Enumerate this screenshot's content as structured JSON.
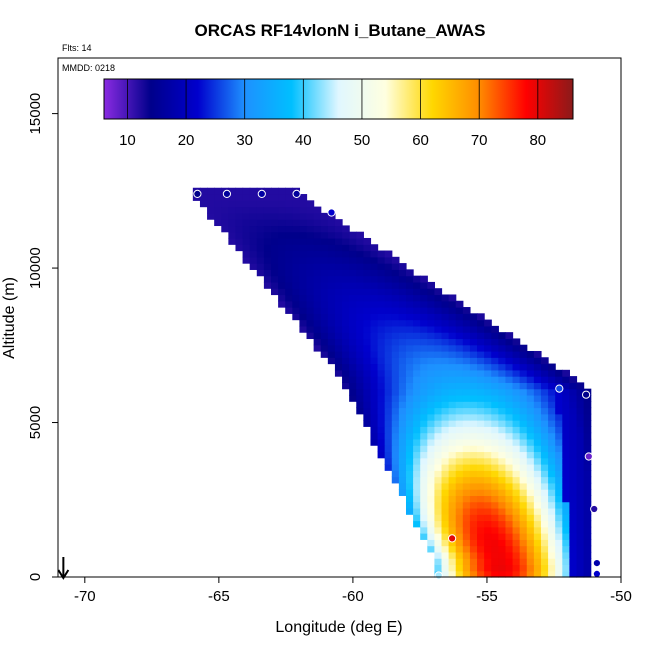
{
  "chart_data": {
    "type": "heatmap",
    "title": "ORCAS RF14vlonN i_Butane_AWAS",
    "notes": {
      "flights": "Flts: 14",
      "date": "MMDD: 0218"
    },
    "xlabel": "Longitude (deg E)",
    "ylabel": "Altitude (m)",
    "xlim": [
      -71,
      -50
    ],
    "ylim": [
      0,
      16800
    ],
    "x_ticks": [
      -70,
      -65,
      -60,
      -55,
      -50
    ],
    "y_ticks": [
      0,
      5000,
      10000,
      15000
    ],
    "colorbar": {
      "range": [
        6,
        86
      ],
      "ticks": [
        10,
        20,
        30,
        40,
        50,
        60,
        70,
        80
      ],
      "stops": [
        "#8a2be2",
        "#00008b",
        "#0000cd",
        "#1e90ff",
        "#00bfff",
        "#e0f7ff",
        "#ffffe0",
        "#ffd700",
        "#ff8c00",
        "#ff0000",
        "#8b1a1a"
      ]
    },
    "field_envelope": {
      "left_edge": [
        [
          -66.0,
          12400
        ],
        [
          -60.5,
          6500
        ],
        [
          -57.0,
          600
        ]
      ],
      "right_edge": [
        [
          -62.0,
          12400
        ],
        [
          -51.0,
          6000
        ],
        [
          -51.0,
          200
        ]
      ],
      "peak": {
        "lon": -56.3,
        "alt": 1500,
        "value": 82
      }
    },
    "samples": [
      {
        "lon": -65.8,
        "alt": 12400,
        "value": 14
      },
      {
        "lon": -64.7,
        "alt": 12400,
        "value": 16
      },
      {
        "lon": -63.4,
        "alt": 12400,
        "value": 17
      },
      {
        "lon": -62.1,
        "alt": 12400,
        "value": 16
      },
      {
        "lon": -60.8,
        "alt": 11800,
        "value": 22
      },
      {
        "lon": -52.3,
        "alt": 6100,
        "value": 26
      },
      {
        "lon": -51.3,
        "alt": 5900,
        "value": 14
      },
      {
        "lon": -51.2,
        "alt": 3900,
        "value": 8
      },
      {
        "lon": -51.0,
        "alt": 2200,
        "value": 12
      },
      {
        "lon": -56.3,
        "alt": 1250,
        "value": 80
      },
      {
        "lon": -50.9,
        "alt": 450,
        "value": 18
      },
      {
        "lon": -50.9,
        "alt": 100,
        "value": 22
      },
      {
        "lon": -56.8,
        "alt": 50,
        "value": 44
      }
    ],
    "annotations": [
      {
        "type": "arrow-down",
        "lon": -70.8,
        "alt": 0
      }
    ],
    "grid": false,
    "legend": "colorbar-top"
  }
}
